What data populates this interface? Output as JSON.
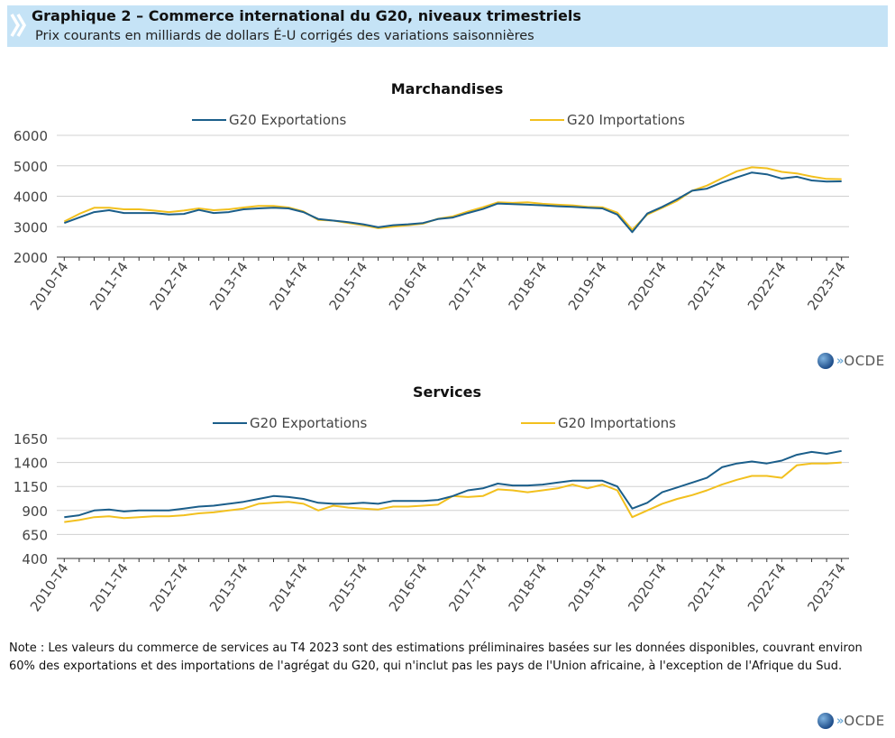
{
  "header": {
    "title": "Graphique 2 – Commerce international du G20, niveaux trimestriels",
    "subtitle": "Prix courants en milliards de dollars É-U corrigés des variations saisonnières"
  },
  "colors": {
    "exports": "#1b5e8a",
    "imports": "#f2c01e",
    "grid": "#d0d0d0",
    "header_bg": "#c5e3f6"
  },
  "logo": {
    "text": "OCDE"
  },
  "note": "Note : Les valeurs du commerce de services au T4 2023 sont des estimations préliminaires basées sur les données disponibles, couvrant environ 60% des exportations et des importations de l'agrégat du G20, qui n'inclut pas les pays de l'Union africaine, à l'exception de l'Afrique du Sud.",
  "chart_data": [
    {
      "type": "line",
      "title": "Marchandises",
      "ylim": [
        2000,
        6000
      ],
      "yticks": [
        2000,
        3000,
        4000,
        5000,
        6000
      ],
      "x": [
        "2010-T4",
        "2011-T1",
        "2011-T2",
        "2011-T3",
        "2011-T4",
        "2012-T1",
        "2012-T2",
        "2012-T3",
        "2012-T4",
        "2013-T1",
        "2013-T2",
        "2013-T3",
        "2013-T4",
        "2014-T1",
        "2014-T2",
        "2014-T3",
        "2014-T4",
        "2015-T1",
        "2015-T2",
        "2015-T3",
        "2015-T4",
        "2016-T1",
        "2016-T2",
        "2016-T3",
        "2016-T4",
        "2017-T1",
        "2017-T2",
        "2017-T3",
        "2017-T4",
        "2018-T1",
        "2018-T2",
        "2018-T3",
        "2018-T4",
        "2019-T1",
        "2019-T2",
        "2019-T3",
        "2019-T4",
        "2020-T1",
        "2020-T2",
        "2020-T3",
        "2020-T4",
        "2021-T1",
        "2021-T2",
        "2021-T3",
        "2021-T4",
        "2022-T1",
        "2022-T2",
        "2022-T3",
        "2022-T4",
        "2023-T1",
        "2023-T2",
        "2023-T3",
        "2023-T4"
      ],
      "xtick_labels": [
        "2010-T4",
        "2011-T4",
        "2012-T4",
        "2013-T4",
        "2014-T4",
        "2015-T4",
        "2016-T4",
        "2017-T4",
        "2018-T4",
        "2019-T4",
        "2020-T4",
        "2021-T4",
        "2022-T4",
        "2023-T4"
      ],
      "legend_placement": "top",
      "grid": true,
      "series": [
        {
          "name": "G20 Exportations",
          "values": [
            3120,
            3300,
            3480,
            3540,
            3450,
            3450,
            3450,
            3400,
            3420,
            3550,
            3450,
            3480,
            3570,
            3600,
            3620,
            3600,
            3480,
            3250,
            3200,
            3150,
            3080,
            2980,
            3050,
            3080,
            3120,
            3250,
            3300,
            3450,
            3580,
            3760,
            3740,
            3720,
            3700,
            3670,
            3650,
            3620,
            3600,
            3400,
            2820,
            3430,
            3650,
            3900,
            4180,
            4250,
            4450,
            4620,
            4780,
            4720,
            4580,
            4640,
            4520,
            4480,
            4490
          ]
        },
        {
          "name": "G20 Importations",
          "values": [
            3170,
            3420,
            3620,
            3620,
            3570,
            3570,
            3530,
            3480,
            3530,
            3600,
            3540,
            3570,
            3630,
            3680,
            3680,
            3630,
            3500,
            3220,
            3200,
            3120,
            3050,
            2950,
            3000,
            3050,
            3100,
            3260,
            3340,
            3500,
            3640,
            3800,
            3780,
            3800,
            3750,
            3720,
            3700,
            3650,
            3640,
            3460,
            2900,
            3400,
            3620,
            3850,
            4180,
            4350,
            4590,
            4820,
            4950,
            4920,
            4800,
            4750,
            4650,
            4570,
            4560
          ]
        }
      ]
    },
    {
      "type": "line",
      "title": "Services",
      "ylim": [
        400,
        1650
      ],
      "yticks": [
        400,
        650,
        900,
        1150,
        1400,
        1650
      ],
      "x": [
        "2010-T4",
        "2011-T1",
        "2011-T2",
        "2011-T3",
        "2011-T4",
        "2012-T1",
        "2012-T2",
        "2012-T3",
        "2012-T4",
        "2013-T1",
        "2013-T2",
        "2013-T3",
        "2013-T4",
        "2014-T1",
        "2014-T2",
        "2014-T3",
        "2014-T4",
        "2015-T1",
        "2015-T2",
        "2015-T3",
        "2015-T4",
        "2016-T1",
        "2016-T2",
        "2016-T3",
        "2016-T4",
        "2017-T1",
        "2017-T2",
        "2017-T3",
        "2017-T4",
        "2018-T1",
        "2018-T2",
        "2018-T3",
        "2018-T4",
        "2019-T1",
        "2019-T2",
        "2019-T3",
        "2019-T4",
        "2020-T1",
        "2020-T2",
        "2020-T3",
        "2020-T4",
        "2021-T1",
        "2021-T2",
        "2021-T3",
        "2021-T4",
        "2022-T1",
        "2022-T2",
        "2022-T3",
        "2022-T4",
        "2023-T1",
        "2023-T2",
        "2023-T3",
        "2023-T4"
      ],
      "xtick_labels": [
        "2010-T4",
        "2011-T4",
        "2012-T4",
        "2013-T4",
        "2014-T4",
        "2015-T4",
        "2016-T4",
        "2017-T4",
        "2018-T4",
        "2019-T4",
        "2020-T4",
        "2021-T4",
        "2022-T4",
        "2023-T4"
      ],
      "legend_placement": "top",
      "grid": true,
      "series": [
        {
          "name": "G20 Exportations",
          "values": [
            830,
            850,
            900,
            910,
            890,
            900,
            900,
            900,
            920,
            940,
            950,
            970,
            990,
            1020,
            1050,
            1040,
            1020,
            980,
            970,
            970,
            980,
            970,
            1000,
            1000,
            1000,
            1010,
            1050,
            1110,
            1130,
            1180,
            1160,
            1160,
            1170,
            1190,
            1210,
            1210,
            1210,
            1150,
            920,
            980,
            1090,
            1140,
            1190,
            1240,
            1350,
            1390,
            1410,
            1390,
            1420,
            1480,
            1510,
            1490,
            1520
          ]
        },
        {
          "name": "G20 Importations",
          "values": [
            780,
            800,
            830,
            840,
            820,
            830,
            840,
            840,
            850,
            870,
            880,
            900,
            920,
            970,
            980,
            990,
            970,
            900,
            950,
            930,
            920,
            910,
            940,
            940,
            950,
            960,
            1050,
            1040,
            1050,
            1120,
            1110,
            1090,
            1110,
            1130,
            1170,
            1130,
            1170,
            1110,
            830,
            900,
            970,
            1020,
            1060,
            1110,
            1170,
            1220,
            1260,
            1260,
            1240,
            1370,
            1390,
            1390,
            1400
          ]
        }
      ]
    }
  ]
}
